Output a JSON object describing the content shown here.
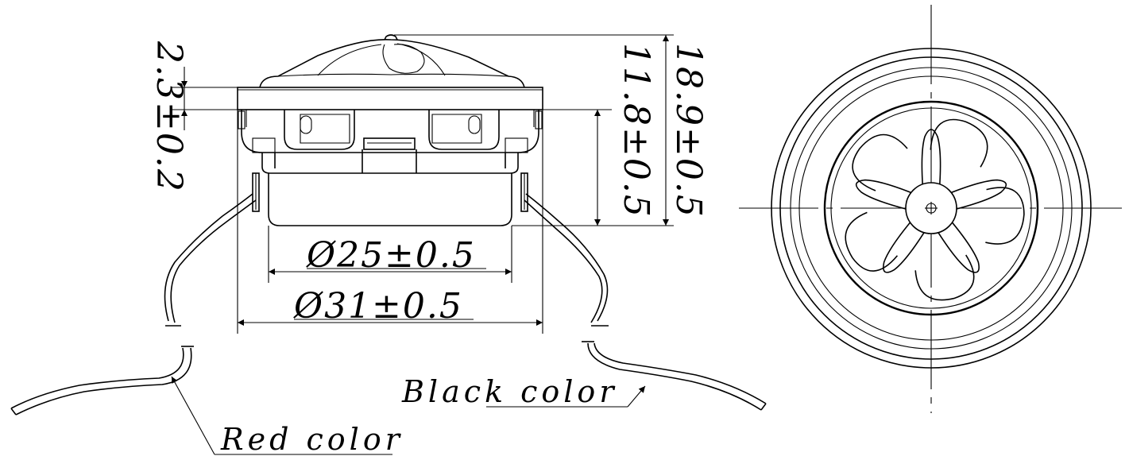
{
  "dimensions": {
    "inner_diameter": "Ø25±0.5",
    "outer_diameter": "Ø31±0.5",
    "flange_thickness": "2.3±0.2",
    "body_height": "11.8±0.5",
    "total_height": "18.9±0.5"
  },
  "labels": {
    "black_wire": "Black color",
    "red_wire": "Red color"
  },
  "colors": {
    "line": "#000000",
    "background": "#ffffff"
  }
}
